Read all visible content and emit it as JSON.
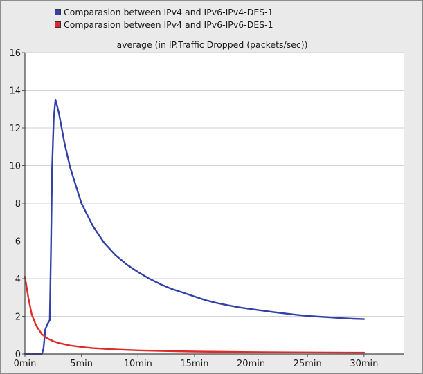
{
  "legend": [
    {
      "label": "Comparasion between IPv4 and IPv6-IPv4-DES-1",
      "color": "#3340a8"
    },
    {
      "label": "Comparasion between IPv4 and IPv6-IPv6-DES-1",
      "color": "#e02a2a"
    }
  ],
  "chart_data": {
    "type": "line",
    "title": "average (in IP.Traffic Dropped (packets/sec))",
    "xlabel": "",
    "ylabel": "",
    "x_unit": "min",
    "xlim": [
      0,
      33.5
    ],
    "ylim": [
      0,
      16
    ],
    "x_ticks": [
      0,
      5,
      10,
      15,
      20,
      25,
      30
    ],
    "x_tick_labels": [
      "0min",
      "5min",
      "10min",
      "15min",
      "20min",
      "25min",
      "30min"
    ],
    "y_ticks": [
      0,
      2,
      4,
      6,
      8,
      10,
      12,
      14,
      16
    ],
    "grid": "horizontal",
    "legend_position": "top-left",
    "series": [
      {
        "name": "Comparasion between IPv4 and IPv6-IPv4-DES-1",
        "color": "#3340a8",
        "x": [
          0,
          1.5,
          1.65,
          1.8,
          2.0,
          2.2,
          2.3,
          2.4,
          2.55,
          2.7,
          3.0,
          3.5,
          4.0,
          5.0,
          6.0,
          7.0,
          8.0,
          9.0,
          10.0,
          11.0,
          12.0,
          13.0,
          14.0,
          15.0,
          16.0,
          17.0,
          18.0,
          19.0,
          20.0,
          21.0,
          22.0,
          23.0,
          24.0,
          25.0,
          26.0,
          27.0,
          28.0,
          29.0,
          30.0
        ],
        "values": [
          0,
          0,
          0.3,
          1.3,
          1.6,
          1.8,
          5.5,
          9.8,
          12.5,
          13.5,
          12.8,
          11.2,
          9.9,
          8.0,
          6.8,
          5.9,
          5.25,
          4.75,
          4.35,
          4.0,
          3.7,
          3.45,
          3.25,
          3.05,
          2.85,
          2.7,
          2.58,
          2.47,
          2.38,
          2.3,
          2.22,
          2.15,
          2.08,
          2.02,
          1.98,
          1.94,
          1.9,
          1.87,
          1.85
        ]
      },
      {
        "name": "Comparasion between IPv4 and IPv6-IPv6-DES-1",
        "color": "#e02a2a",
        "x": [
          0,
          0.3,
          0.6,
          1.0,
          1.5,
          2.0,
          2.5,
          3.0,
          4.0,
          5.0,
          6.0,
          8.0,
          10.0,
          12.0,
          15.0,
          18.0,
          20.0,
          25.0,
          30.0
        ],
        "values": [
          4.1,
          3.0,
          2.1,
          1.5,
          1.05,
          0.82,
          0.68,
          0.58,
          0.45,
          0.37,
          0.31,
          0.24,
          0.19,
          0.16,
          0.13,
          0.11,
          0.1,
          0.08,
          0.07
        ]
      }
    ]
  }
}
